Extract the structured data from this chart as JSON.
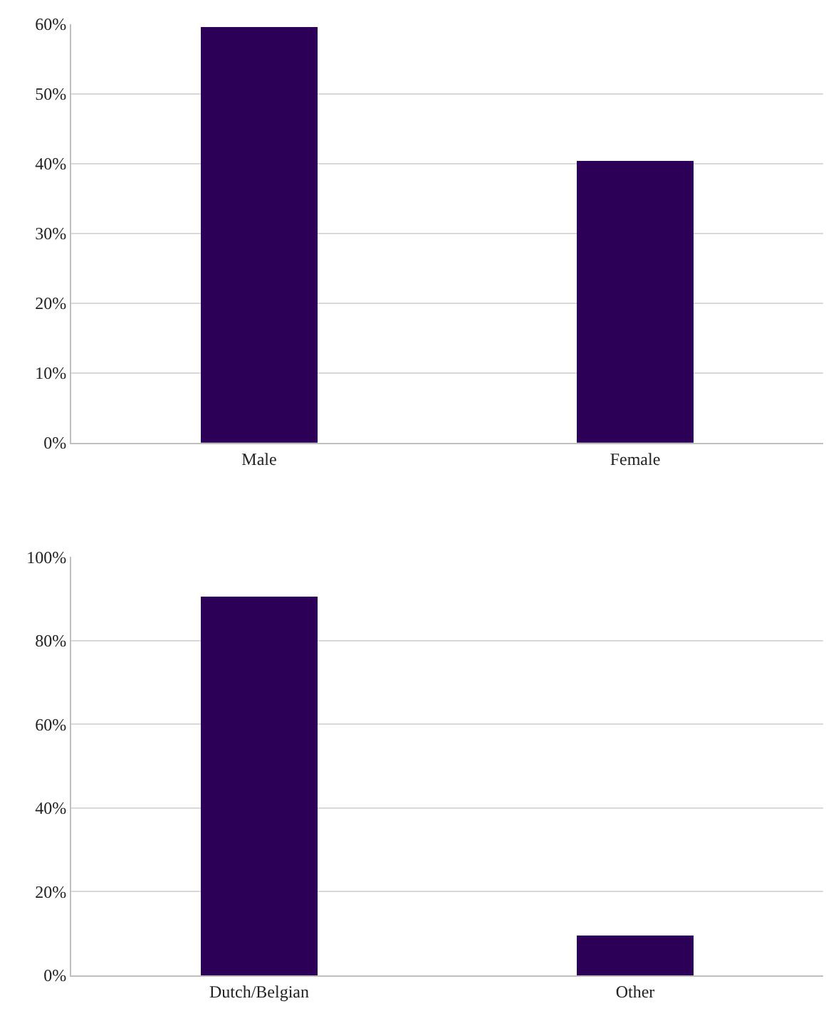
{
  "chart_data": [
    {
      "type": "bar",
      "categories": [
        "Male",
        "Female"
      ],
      "values": [
        59.5,
        40.5
      ],
      "color": "#2d0057",
      "ylim": [
        0,
        60
      ],
      "yticks": [
        {
          "value": 0,
          "label": "0%"
        },
        {
          "value": 10,
          "label": "10%"
        },
        {
          "value": 20,
          "label": "20%"
        },
        {
          "value": 30,
          "label": "30%"
        },
        {
          "value": 40,
          "label": "40%"
        },
        {
          "value": 50,
          "label": "50%"
        },
        {
          "value": 60,
          "label": "60%"
        }
      ],
      "grid": "y"
    },
    {
      "type": "bar",
      "categories": [
        "Dutch/Belgian",
        "Other"
      ],
      "values": [
        90.6,
        9.4
      ],
      "color": "#2d0057",
      "ylim": [
        0,
        100
      ],
      "yticks": [
        {
          "value": 0,
          "label": "0%"
        },
        {
          "value": 20,
          "label": "20%"
        },
        {
          "value": 40,
          "label": "40%"
        },
        {
          "value": 60,
          "label": "60%"
        },
        {
          "value": 80,
          "label": "80%"
        },
        {
          "value": 100,
          "label": "100%"
        }
      ],
      "grid": "y"
    }
  ]
}
